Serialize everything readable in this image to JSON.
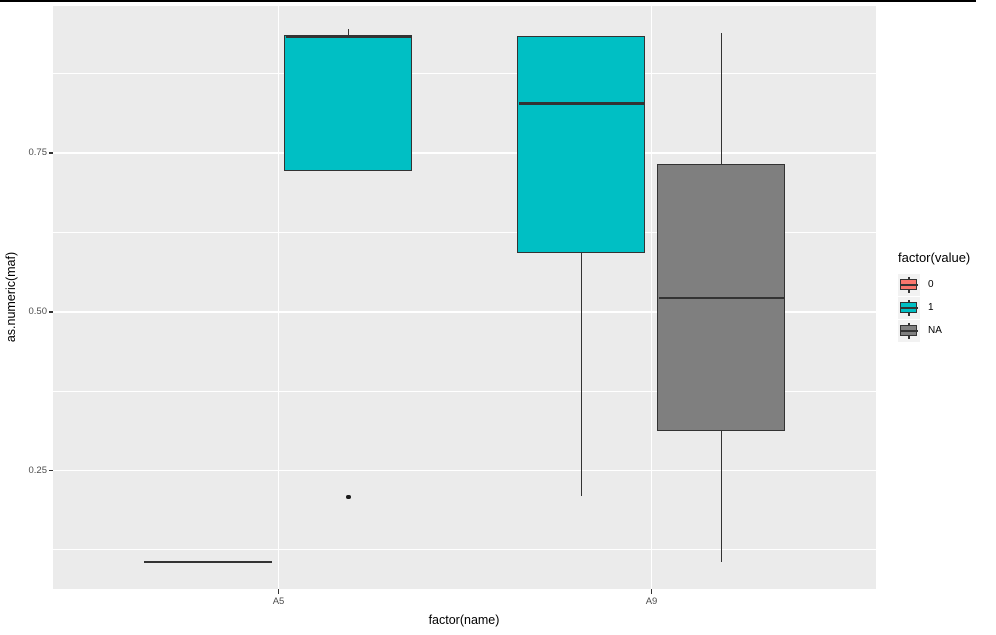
{
  "chart_data": {
    "type": "boxplot",
    "xlabel": "factor(name)",
    "ylabel": "as.numeric(maf)",
    "categories": [
      "A5",
      "A9"
    ],
    "y_axis": {
      "ticks": [
        {
          "value": 0.75,
          "label": "0.75"
        },
        {
          "value": 0.5,
          "label": "0.50"
        },
        {
          "value": 0.25,
          "label": "0.25"
        }
      ],
      "minor_ticks": [
        0.875,
        0.625,
        0.375,
        0.125
      ],
      "range": [
        0.064,
        0.981
      ]
    },
    "x_tick_labels": [
      "A5",
      "A9"
    ],
    "boxes": [
      {
        "category": "A5",
        "group": "0",
        "dodge": "left",
        "stats": {
          "min": 0.106,
          "q1": 0.106,
          "median": 0.106,
          "q3": 0.106,
          "max": 0.106
        },
        "outliers": []
      },
      {
        "category": "A5",
        "group": "1",
        "dodge": "right",
        "stats": {
          "min": 0.722,
          "q1": 0.722,
          "median": 0.933,
          "q3": 0.934,
          "max": 0.945
        },
        "outliers": [
          0.208
        ]
      },
      {
        "category": "A9",
        "group": "1",
        "dodge": "left",
        "stats": {
          "min": 0.21,
          "q1": 0.594,
          "median": 0.828,
          "q3": 0.932,
          "max": 0.932
        },
        "outliers": []
      },
      {
        "category": "A9",
        "group": "NA",
        "dodge": "right",
        "stats": {
          "min": 0.106,
          "q1": 0.313,
          "median": 0.522,
          "q3": 0.73,
          "max": 0.939
        },
        "outliers": []
      }
    ],
    "legend": {
      "title": "factor(value)",
      "items": [
        {
          "label": "0",
          "color": "#F8766D"
        },
        {
          "label": "1",
          "color": "#00BFC4"
        },
        {
          "label": "NA",
          "color": "#7F7F7F"
        }
      ],
      "position": "right"
    },
    "colors": {
      "panel_background": "#EBEBEB",
      "gridline": "#FFFFFF",
      "box_border": "#333333",
      "axis_text": "#4D4D4D",
      "axis_title": "#000000",
      "legend_key_background": "#F2F2F2",
      "top_border": "#000000"
    },
    "grid": "on"
  }
}
